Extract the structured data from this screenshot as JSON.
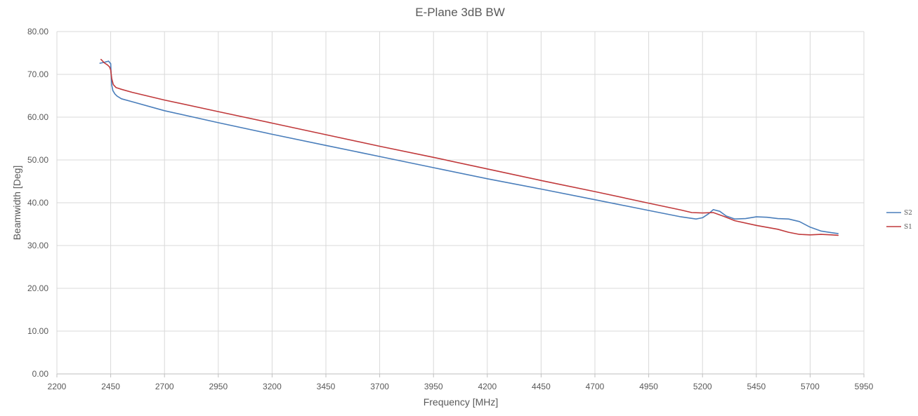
{
  "chart_data": {
    "type": "line",
    "title": "E-Plane 3dB BW",
    "xlabel": "Frequency [MHz]",
    "ylabel": "Beamwidth [Deg]",
    "xlim": [
      2200,
      5950
    ],
    "ylim": [
      0,
      80
    ],
    "x_ticks": [
      2200,
      2450,
      2700,
      2950,
      3200,
      3450,
      3700,
      3950,
      4200,
      4450,
      4700,
      4950,
      5200,
      5450,
      5700,
      5950
    ],
    "y_ticks": [
      "0.00",
      "10.00",
      "20.00",
      "30.00",
      "40.00",
      "50.00",
      "60.00",
      "70.00",
      "80.00"
    ],
    "grid": true,
    "legend_position": "right",
    "series": [
      {
        "name": "S2",
        "color": "#4a7ebb",
        "points": [
          [
            2400,
            72.6
          ],
          [
            2420,
            72.8
          ],
          [
            2440,
            73.1
          ],
          [
            2450,
            72.5
          ],
          [
            2452,
            70.0
          ],
          [
            2455,
            67.5
          ],
          [
            2460,
            66.2
          ],
          [
            2470,
            65.4
          ],
          [
            2480,
            64.9
          ],
          [
            2500,
            64.3
          ],
          [
            2550,
            63.6
          ],
          [
            2700,
            61.5
          ],
          [
            2950,
            58.7
          ],
          [
            3200,
            56.0
          ],
          [
            3450,
            53.4
          ],
          [
            3700,
            50.8
          ],
          [
            3950,
            48.2
          ],
          [
            4200,
            45.6
          ],
          [
            4450,
            43.2
          ],
          [
            4700,
            40.7
          ],
          [
            4950,
            38.2
          ],
          [
            5100,
            36.7
          ],
          [
            5170,
            36.2
          ],
          [
            5200,
            36.5
          ],
          [
            5230,
            37.5
          ],
          [
            5250,
            38.4
          ],
          [
            5280,
            38.0
          ],
          [
            5310,
            36.9
          ],
          [
            5350,
            36.2
          ],
          [
            5400,
            36.3
          ],
          [
            5450,
            36.7
          ],
          [
            5500,
            36.6
          ],
          [
            5550,
            36.3
          ],
          [
            5600,
            36.2
          ],
          [
            5650,
            35.6
          ],
          [
            5700,
            34.3
          ],
          [
            5750,
            33.4
          ],
          [
            5800,
            33.0
          ],
          [
            5830,
            32.8
          ]
        ]
      },
      {
        "name": "S1",
        "color": "#c0393b",
        "points": [
          [
            2405,
            73.5
          ],
          [
            2420,
            72.7
          ],
          [
            2435,
            72.2
          ],
          [
            2445,
            71.7
          ],
          [
            2450,
            71.0
          ],
          [
            2455,
            69.0
          ],
          [
            2462,
            67.6
          ],
          [
            2475,
            66.9
          ],
          [
            2500,
            66.5
          ],
          [
            2550,
            65.8
          ],
          [
            2700,
            64.0
          ],
          [
            2950,
            61.3
          ],
          [
            3200,
            58.6
          ],
          [
            3450,
            55.9
          ],
          [
            3700,
            53.2
          ],
          [
            3950,
            50.6
          ],
          [
            4200,
            47.9
          ],
          [
            4450,
            45.2
          ],
          [
            4700,
            42.6
          ],
          [
            4950,
            39.9
          ],
          [
            5100,
            38.3
          ],
          [
            5150,
            37.7
          ],
          [
            5200,
            37.6
          ],
          [
            5250,
            37.7
          ],
          [
            5300,
            36.8
          ],
          [
            5350,
            35.8
          ],
          [
            5450,
            34.7
          ],
          [
            5550,
            33.8
          ],
          [
            5600,
            33.1
          ],
          [
            5650,
            32.6
          ],
          [
            5700,
            32.5
          ],
          [
            5750,
            32.6
          ],
          [
            5800,
            32.5
          ],
          [
            5830,
            32.4
          ]
        ]
      }
    ]
  }
}
